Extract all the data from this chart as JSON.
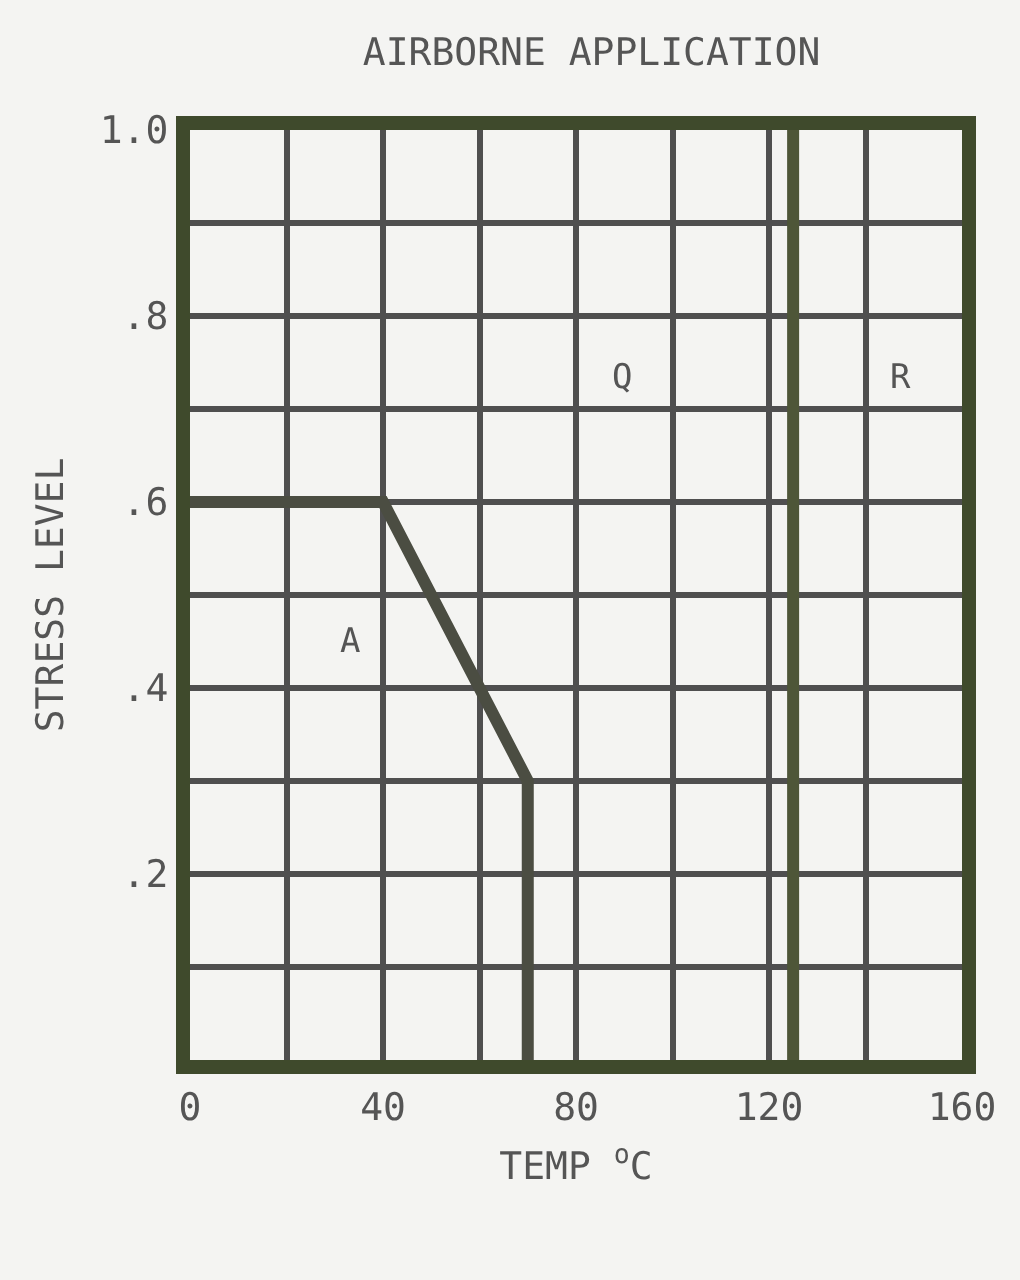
{
  "chart_data": {
    "type": "line",
    "title": "AIRBORNE APPLICATION",
    "xlabel": "TEMP $^{o}$C",
    "ylabel": "STRESS LEVEL",
    "series": [
      {
        "color": "#4b4d42",
        "x": [
          0,
          40,
          70,
          70
        ],
        "values": [
          0.6,
          0.6,
          0.3,
          0
        ]
      }
    ],
    "xlim": [
      0,
      160
    ],
    "ylim": [
      0,
      1.0
    ],
    "xticks": [
      0,
      {
        "value": 20,
        "label": null
      },
      40,
      {
        "value": 60,
        "label": null
      },
      80,
      {
        "value": 100,
        "label": null
      },
      120,
      {
        "value": 140,
        "label": null
      },
      160
    ],
    "yticks": [
      {
        "value": 0.1,
        "label": null
      },
      {
        "value": 0.2,
        "label": ".2"
      },
      {
        "value": 0.3,
        "label": null
      },
      {
        "value": 0.4,
        "label": ".4"
      },
      {
        "value": 0.5,
        "label": null
      },
      {
        "value": 0.6,
        "label": ".6"
      },
      {
        "value": 0.7,
        "label": null
      },
      {
        "value": 0.8,
        "label": ".8"
      },
      {
        "value": 0.9,
        "label": null
      },
      {
        "value": 1.0,
        "label": "1.0"
      }
    ],
    "ref_lines": [
      {
        "axis": "x",
        "value": 125,
        "color": "#4e5638"
      }
    ],
    "annotations": [
      "A",
      "Q",
      "R"
    ],
    "grid": true,
    "marker": "none",
    "line_style": "solid"
  }
}
